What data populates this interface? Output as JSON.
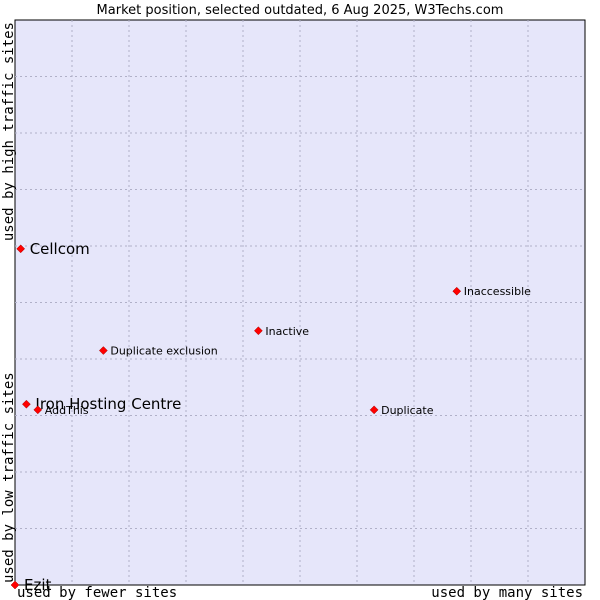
{
  "chart_data": {
    "type": "scatter",
    "title": "Market position, selected outdated, 6 Aug 2025, W3Techs.com",
    "xlabel_left": "used by fewer sites",
    "xlabel_right": "used by many sites",
    "ylabel_bottom": "used by low traffic sites",
    "ylabel_top": "used by high traffic sites",
    "xlim": [
      0,
      100
    ],
    "ylim": [
      0,
      100
    ],
    "grid": true,
    "colors": {
      "plot_bg": "#e6e6fa",
      "point": "#ff0000",
      "border": "#000000"
    },
    "points": [
      {
        "name": "Cellcom",
        "x": 1.0,
        "y": 59.5,
        "size": "big"
      },
      {
        "name": "Inaccessible",
        "x": 77.5,
        "y": 52.0,
        "size": "small"
      },
      {
        "name": "Inactive",
        "x": 42.7,
        "y": 45.0,
        "size": "small"
      },
      {
        "name": "Duplicate exclusion",
        "x": 15.5,
        "y": 41.5,
        "size": "small"
      },
      {
        "name": "Iron Hosting Centre",
        "x": 2.0,
        "y": 32.0,
        "size": "big"
      },
      {
        "name": "AddThis",
        "x": 4.0,
        "y": 31.0,
        "size": "small"
      },
      {
        "name": "Duplicate",
        "x": 63.0,
        "y": 31.0,
        "size": "small"
      },
      {
        "name": "Ezit",
        "x": 0.0,
        "y": 0.0,
        "size": "big"
      }
    ]
  }
}
